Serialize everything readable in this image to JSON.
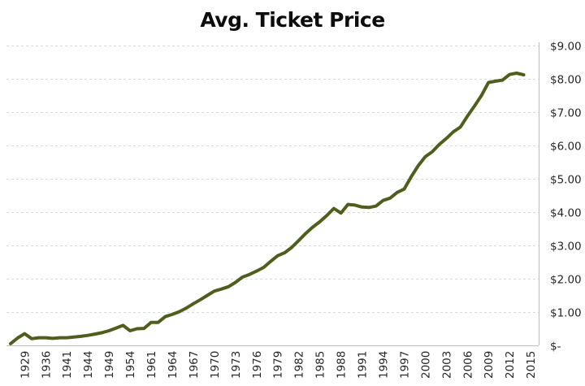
{
  "chart_data": {
    "type": "line",
    "title": "Avg. Ticket Price",
    "xlabel": "",
    "ylabel": "",
    "ylim": [
      0,
      9
    ],
    "y_axis_position": "right",
    "y_ticks": [
      0,
      1,
      2,
      3,
      4,
      5,
      6,
      7,
      8,
      9
    ],
    "y_tick_labels": [
      "$-",
      "$1.00",
      "$2.00",
      "$3.00",
      "$4.00",
      "$5.00",
      "$6.00",
      "$7.00",
      "$8.00",
      "$9.00"
    ],
    "grid": true,
    "legend": "none",
    "line_color": "#4f5e1c",
    "x_tick_labels": [
      "1929",
      "1936",
      "1941",
      "1944",
      "1949",
      "1954",
      "1961",
      "1964",
      "1967",
      "1970",
      "1973",
      "1976",
      "1979",
      "1982",
      "1985",
      "1988",
      "1991",
      "1994",
      "1997",
      "2000",
      "2003",
      "2006",
      "2009",
      "2012",
      "2015"
    ],
    "label_every": 3,
    "label_offset": 2,
    "series": [
      {
        "name": "Avg. Ticket Price",
        "values": [
          0.05,
          0.22,
          0.35,
          0.2,
          0.23,
          0.23,
          0.21,
          0.23,
          0.23,
          0.25,
          0.27,
          0.3,
          0.34,
          0.38,
          0.44,
          0.52,
          0.6,
          0.44,
          0.5,
          0.51,
          0.69,
          0.69,
          0.86,
          0.93,
          1.01,
          1.12,
          1.25,
          1.37,
          1.5,
          1.63,
          1.69,
          1.76,
          1.89,
          2.05,
          2.13,
          2.23,
          2.34,
          2.52,
          2.69,
          2.78,
          2.94,
          3.15,
          3.36,
          3.55,
          3.71,
          3.9,
          4.11,
          3.97,
          4.23,
          4.21,
          4.15,
          4.14,
          4.18,
          4.35,
          4.42,
          4.59,
          4.69,
          5.06,
          5.39,
          5.66,
          5.81,
          6.03,
          6.21,
          6.41,
          6.55,
          6.88,
          7.18,
          7.5,
          7.89,
          7.93,
          7.96,
          8.13,
          8.17,
          8.12
        ]
      }
    ]
  }
}
